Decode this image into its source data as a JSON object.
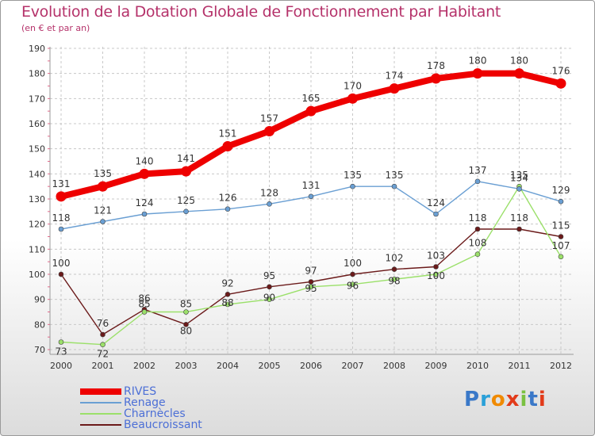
{
  "chart_data": {
    "type": "line",
    "title": "Evolution de la Dotation Globale de Fonctionnement par Habitant",
    "subtitle": "(en € et par an)",
    "xlabel": "",
    "ylabel": "",
    "ylim": [
      70,
      190
    ],
    "yticks": [
      "70",
      "80",
      "90",
      "100",
      "110",
      "120",
      "130",
      "140",
      "150",
      "160",
      "170",
      "180",
      "190"
    ],
    "categories": [
      "2000",
      "2001",
      "2002",
      "2003",
      "2004",
      "2005",
      "2006",
      "2007",
      "2008",
      "2009",
      "2010",
      "2011",
      "2012"
    ],
    "grid": true,
    "legend_position": "bottom-left",
    "series": [
      {
        "name": "RIVES",
        "color": "#ee0000",
        "values": [
          131,
          135,
          140,
          141,
          151,
          157,
          165,
          170,
          174,
          178,
          180,
          180,
          176
        ],
        "labels": [
          "131",
          "135",
          "140",
          "141",
          "151",
          "157",
          "165",
          "170",
          "174",
          "178",
          "180",
          "180",
          "176"
        ]
      },
      {
        "name": "Renage",
        "color": "#6a9fd3",
        "values": [
          118,
          121,
          124,
          125,
          126,
          128,
          131,
          135,
          135,
          124,
          137,
          134,
          129
        ],
        "labels": [
          "118",
          "121",
          "124",
          "125",
          "126",
          "128",
          "131",
          "135",
          "135",
          "124",
          "137",
          "134",
          "129"
        ]
      },
      {
        "name": "Charnècles",
        "color": "#9be06a",
        "values": [
          73,
          72,
          85,
          85,
          88,
          90,
          95,
          96,
          98,
          100,
          108,
          135,
          107
        ],
        "labels": [
          "73",
          "72",
          "85",
          "85",
          "88",
          "90",
          "95",
          "96",
          "98",
          "100",
          "108",
          "135",
          "107"
        ]
      },
      {
        "name": "Beaucroissant",
        "color": "#6b1a1a",
        "values": [
          100,
          76,
          86,
          80,
          92,
          95,
          97,
          100,
          102,
          103,
          118,
          118,
          115
        ],
        "labels": [
          "100",
          "76",
          "86",
          "80",
          "92",
          "95",
          "97",
          "100",
          "102",
          "103",
          "118",
          "118",
          "115"
        ]
      }
    ]
  },
  "brand": {
    "letters": [
      "P",
      "r",
      "o",
      "x",
      "i",
      "t",
      "i"
    ],
    "colors": [
      "#3a78c8",
      "#2aa0d8",
      "#f08a00",
      "#e23b1a",
      "#7ac142",
      "#3a78c8",
      "#e23b1a"
    ]
  }
}
